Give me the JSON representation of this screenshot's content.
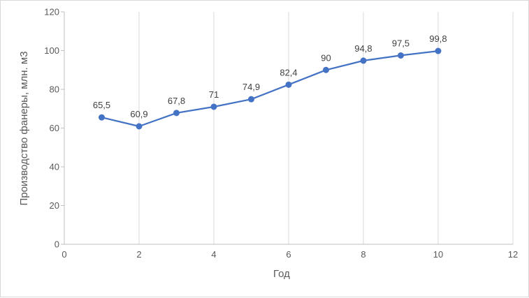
{
  "chart_data": {
    "type": "scatter",
    "line": true,
    "markers": true,
    "title": "",
    "xlabel": "Год",
    "ylabel": "Производство фанеры, млн. м3",
    "xlim": [
      0,
      12
    ],
    "ylim": [
      0,
      120
    ],
    "xticks": [
      0,
      2,
      4,
      6,
      8,
      10,
      12
    ],
    "yticks": [
      0,
      20,
      40,
      60,
      80,
      100,
      120
    ],
    "x_tick_labels": [
      "0",
      "2",
      "4",
      "6",
      "8",
      "10",
      "12"
    ],
    "y_tick_labels": [
      "0",
      "20",
      "40",
      "60",
      "80",
      "100",
      "120"
    ],
    "grid": "vertical",
    "legend": "none",
    "series": [
      {
        "x": [
          1,
          2,
          3,
          4,
          5,
          6,
          7,
          8,
          9,
          10
        ],
        "y": [
          65.5,
          60.9,
          67.8,
          71,
          74.9,
          82.4,
          90,
          94.8,
          97.5,
          99.8
        ],
        "labels": [
          "65,5",
          "60,9",
          "67,8",
          "71",
          "74,9",
          "82,4",
          "90",
          "94,8",
          "97,5",
          "99,8"
        ],
        "color": "#4472c4"
      }
    ],
    "colors": {
      "series": "#4472c4",
      "grid": "#d9d9d9",
      "axis": "#bfbfbf",
      "text": "#595959"
    }
  }
}
